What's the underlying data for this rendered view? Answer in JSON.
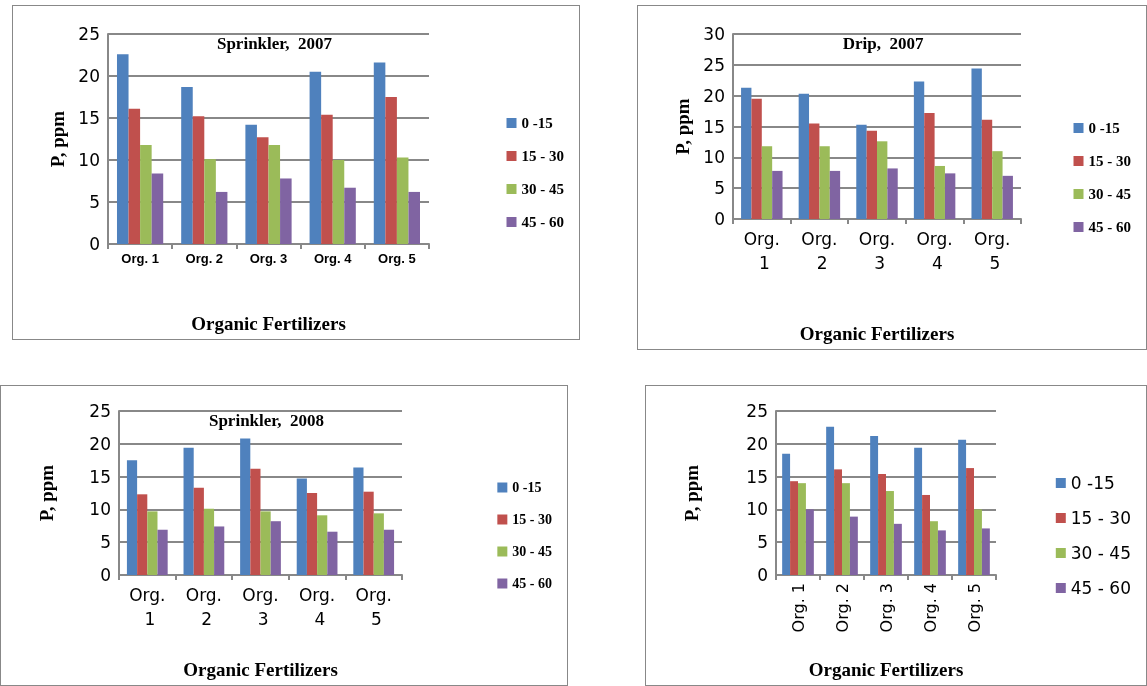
{
  "chart_data": [
    {
      "type": "bar",
      "title": "Sprinkler,  2007",
      "xlabel": "Organic Fertilizers",
      "ylabel": "P, ppm",
      "categories": [
        "Org. 1",
        "Org. 2",
        "Org. 3",
        "Org. 4",
        "Org. 5"
      ],
      "ylim": [
        0,
        25
      ],
      "yticks": [
        0,
        5,
        10,
        15,
        20,
        25
      ],
      "grid": "y",
      "legend": "right",
      "series": [
        {
          "name": "0 -15",
          "color": "#4f81bd",
          "values": [
            22.6,
            18.7,
            14.2,
            20.5,
            21.6
          ]
        },
        {
          "name": "15 - 30",
          "color": "#c0504d",
          "values": [
            16.1,
            15.2,
            12.7,
            15.4,
            17.5
          ]
        },
        {
          "name": "30 - 45",
          "color": "#9bbb59",
          "values": [
            11.8,
            10.1,
            11.8,
            10.0,
            10.3
          ]
        },
        {
          "name": "45 - 60",
          "color": "#8064a2",
          "values": [
            8.4,
            6.2,
            7.8,
            6.7,
            6.2
          ]
        }
      ]
    },
    {
      "type": "bar",
      "title": "Drip,  2007",
      "xlabel": "Organic Fertilizers",
      "ylabel": "P, ppm",
      "categories": [
        "Org. 1",
        "Org. 2",
        "Org. 3",
        "Org. 4",
        "Org. 5"
      ],
      "ylim": [
        0,
        30
      ],
      "yticks": [
        0,
        5,
        10,
        15,
        20,
        25,
        30
      ],
      "grid": "y",
      "legend": "right",
      "series": [
        {
          "name": "0 -15",
          "color": "#4f81bd",
          "values": [
            21.3,
            20.3,
            15.3,
            22.3,
            24.4
          ]
        },
        {
          "name": "15 - 30",
          "color": "#c0504d",
          "values": [
            19.5,
            15.5,
            14.3,
            17.2,
            16.1
          ]
        },
        {
          "name": "30 - 45",
          "color": "#9bbb59",
          "values": [
            11.8,
            11.8,
            12.6,
            8.6,
            11.0
          ]
        },
        {
          "name": "45 - 60",
          "color": "#8064a2",
          "values": [
            7.8,
            7.8,
            8.2,
            7.4,
            7.0
          ]
        }
      ]
    },
    {
      "type": "bar",
      "title": "Sprinkler,  2008",
      "xlabel": "Organic Fertilizers",
      "ylabel": "P, ppm",
      "categories": [
        "Org. 1",
        "Org. 2",
        "Org. 3",
        "Org. 4",
        "Org. 5"
      ],
      "ylim": [
        0,
        25
      ],
      "yticks": [
        0,
        5,
        10,
        15,
        20,
        25
      ],
      "grid": "y",
      "legend": "right",
      "series": [
        {
          "name": "0 -15",
          "color": "#4f81bd",
          "values": [
            17.5,
            19.4,
            20.8,
            14.7,
            16.4
          ]
        },
        {
          "name": "15 - 30",
          "color": "#c0504d",
          "values": [
            12.3,
            13.3,
            16.2,
            12.5,
            12.7
          ]
        },
        {
          "name": "30 - 45",
          "color": "#9bbb59",
          "values": [
            9.7,
            10.1,
            9.7,
            9.1,
            9.4
          ]
        },
        {
          "name": "45 - 60",
          "color": "#8064a2",
          "values": [
            6.9,
            7.4,
            8.2,
            6.6,
            6.9
          ]
        }
      ]
    },
    {
      "type": "bar",
      "xlabel": "Organic Fertilizers",
      "ylabel": "P, ppm",
      "categories": [
        "Org. 1",
        "Org. 2",
        "Org. 3",
        "Org. 4",
        "Org. 5"
      ],
      "ylim": [
        0,
        25
      ],
      "yticks": [
        0,
        5,
        10,
        15,
        20,
        25
      ],
      "grid": "y",
      "legend": "right",
      "series": [
        {
          "name": "0 -15",
          "color": "#4f81bd",
          "values": [
            18.5,
            22.6,
            21.2,
            19.4,
            20.6
          ]
        },
        {
          "name": "15 - 30",
          "color": "#c0504d",
          "values": [
            14.3,
            16.1,
            15.4,
            12.2,
            16.3
          ]
        },
        {
          "name": "30 - 45",
          "color": "#9bbb59",
          "values": [
            14.0,
            14.0,
            12.8,
            8.2,
            10.0
          ]
        },
        {
          "name": "45 - 60",
          "color": "#8064a2",
          "values": [
            10.0,
            8.9,
            7.8,
            6.8,
            7.1
          ]
        }
      ]
    }
  ]
}
